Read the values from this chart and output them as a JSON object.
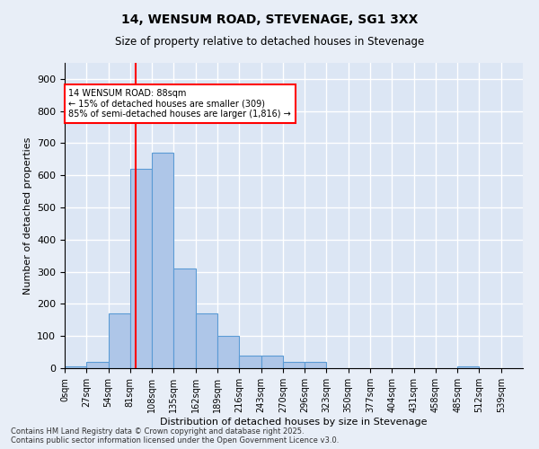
{
  "title": "14, WENSUM ROAD, STEVENAGE, SG1 3XX",
  "subtitle": "Size of property relative to detached houses in Stevenage",
  "xlabel": "Distribution of detached houses by size in Stevenage",
  "ylabel": "Number of detached properties",
  "bin_labels": [
    "0sqm",
    "27sqm",
    "54sqm",
    "81sqm",
    "108sqm",
    "135sqm",
    "162sqm",
    "189sqm",
    "216sqm",
    "243sqm",
    "270sqm",
    "296sqm",
    "323sqm",
    "350sqm",
    "377sqm",
    "404sqm",
    "431sqm",
    "458sqm",
    "485sqm",
    "512sqm",
    "539sqm"
  ],
  "bar_values": [
    5,
    20,
    170,
    620,
    670,
    310,
    170,
    100,
    40,
    40,
    20,
    20,
    0,
    0,
    0,
    0,
    0,
    0,
    5,
    0,
    0
  ],
  "bar_color": "#aec6e8",
  "bar_edge_color": "#5b9bd5",
  "background_color": "#e8eef7",
  "plot_background": "#dce6f4",
  "grid_color": "#ffffff",
  "vline_x": 88,
  "vline_color": "red",
  "annotation_text": "14 WENSUM ROAD: 88sqm\n← 15% of detached houses are smaller (309)\n85% of semi-detached houses are larger (1,816) →",
  "annotation_box_color": "white",
  "annotation_box_edge": "red",
  "ylim": [
    0,
    950
  ],
  "yticks": [
    0,
    100,
    200,
    300,
    400,
    500,
    600,
    700,
    800,
    900
  ],
  "footnote": "Contains HM Land Registry data © Crown copyright and database right 2025.\nContains public sector information licensed under the Open Government Licence v3.0.",
  "bin_width": 27
}
